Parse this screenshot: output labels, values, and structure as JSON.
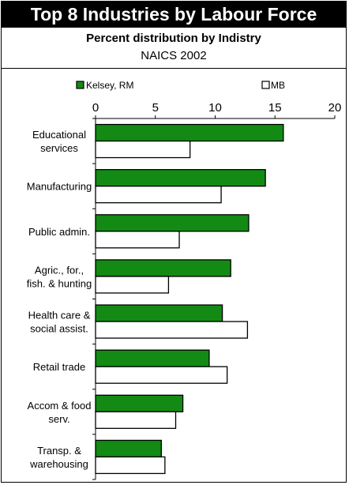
{
  "header": {
    "title": "Top 8 Industries by Labour Force",
    "subtitle": "Percent distribution by Indistry",
    "subtitle2": "NAICS 2002"
  },
  "colors": {
    "kelsey": "#138a13",
    "mb": "#ffffff",
    "outline": "#000000",
    "title_bg": "#000000",
    "title_fg": "#ffffff"
  },
  "chart_data": {
    "type": "bar",
    "orientation": "horizontal",
    "categories": [
      [
        "Educational",
        "services"
      ],
      [
        "Manufacturing"
      ],
      [
        "Public admin."
      ],
      [
        "Agric., for.,",
        "fish. & hunting"
      ],
      [
        "Health care &",
        "social assist."
      ],
      [
        "Retail trade"
      ],
      [
        "Accom & food",
        "serv."
      ],
      [
        "Transp. &",
        "warehousing"
      ]
    ],
    "series": [
      {
        "name": "Kelsey, RM",
        "values": [
          15.7,
          14.2,
          12.8,
          11.3,
          10.6,
          9.5,
          7.3,
          5.5
        ]
      },
      {
        "name": "MB",
        "values": [
          7.9,
          10.5,
          7.0,
          6.1,
          12.7,
          11.0,
          6.7,
          5.8
        ]
      }
    ],
    "xlim": [
      0,
      20
    ],
    "xticks": [
      "0",
      "5",
      "10",
      "15",
      "20"
    ],
    "axis_position": "top",
    "legend_position": "top",
    "grid": false
  }
}
